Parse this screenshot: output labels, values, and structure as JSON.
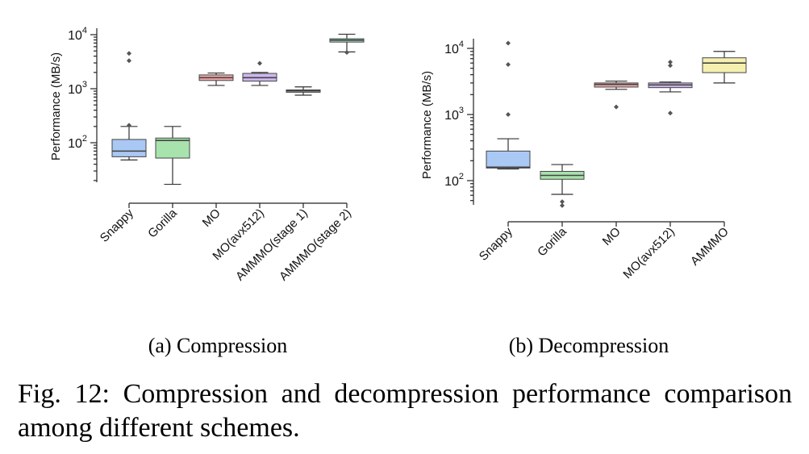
{
  "chart_data": [
    {
      "type": "box",
      "subcaption": "(a) Compression",
      "ylabel": "Performance (MB/s)",
      "yscale": "log",
      "ylim": [
        20,
        12000
      ],
      "yticks": [
        {
          "value": 100,
          "base": "10",
          "exp": "2"
        },
        {
          "value": 1000,
          "base": "10",
          "exp": "3"
        },
        {
          "value": 10000,
          "base": "10",
          "exp": "4"
        }
      ],
      "categories": [
        "Snappy",
        "Gorilla",
        "MO",
        "MO(avx512)",
        "AMMMO(stage 1)",
        "AMMMO(stage 2)"
      ],
      "colors": [
        "#a9c8f3",
        "#a8e3ad",
        "#f2a8a8",
        "#cdb8ef",
        "#cfcfcf",
        "#a6dfc4"
      ],
      "boxes": [
        {
          "name": "Snappy",
          "whislo": 48,
          "q1": 55,
          "med": 70,
          "q3": 115,
          "whishi": 200,
          "fliers": [
            3300,
            4500,
            210
          ]
        },
        {
          "name": "Gorilla",
          "whislo": 17,
          "q1": 52,
          "med": 110,
          "q3": 122,
          "whishi": 200,
          "fliers": []
        },
        {
          "name": "MO",
          "whislo": 1150,
          "q1": 1420,
          "med": 1600,
          "q3": 1800,
          "whishi": 1950,
          "fliers": []
        },
        {
          "name": "MO(avx512)",
          "whislo": 1150,
          "q1": 1380,
          "med": 1600,
          "q3": 1920,
          "whishi": 2000,
          "fliers": [
            2950
          ]
        },
        {
          "name": "AMMMO(stage 1)",
          "whislo": 760,
          "q1": 860,
          "med": 910,
          "q3": 950,
          "whishi": 1080,
          "fliers": []
        },
        {
          "name": "AMMMO(stage 2)",
          "whislo": 4800,
          "q1": 7300,
          "med": 7900,
          "q3": 8400,
          "whishi": 10200,
          "fliers": [
            4700
          ]
        }
      ]
    },
    {
      "type": "box",
      "subcaption": "(b) Decompression",
      "ylabel": "Performance (MB/s)",
      "yscale": "log",
      "ylim": [
        35,
        14000
      ],
      "yticks": [
        {
          "value": 100,
          "base": "10",
          "exp": "2"
        },
        {
          "value": 1000,
          "base": "10",
          "exp": "3"
        },
        {
          "value": 10000,
          "base": "10",
          "exp": "4"
        }
      ],
      "categories": [
        "Snappy",
        "Gorilla",
        "MO",
        "MO(avx512)",
        "AMMMO"
      ],
      "colors": [
        "#a9c8f3",
        "#a8e3ad",
        "#f2a8a8",
        "#cdb8ef",
        "#f5f0b0"
      ],
      "boxes": [
        {
          "name": "Snappy",
          "whislo": 150,
          "q1": 155,
          "med": 160,
          "q3": 280,
          "whishi": 430,
          "fliers": [
            12000,
            5700,
            1000
          ]
        },
        {
          "name": "Gorilla",
          "whislo": 62,
          "q1": 105,
          "med": 120,
          "q3": 138,
          "whishi": 175,
          "fliers": [
            48,
            42
          ]
        },
        {
          "name": "MO",
          "whislo": 2400,
          "q1": 2600,
          "med": 2850,
          "q3": 3000,
          "whishi": 3200,
          "fliers": [
            1300
          ]
        },
        {
          "name": "MO(avx512)",
          "whislo": 2200,
          "q1": 2550,
          "med": 2800,
          "q3": 3000,
          "whishi": 3100,
          "fliers": [
            5500,
            6200,
            1050
          ]
        },
        {
          "name": "AMMMO",
          "whislo": 3000,
          "q1": 4300,
          "med": 6000,
          "q3": 7200,
          "whishi": 9000,
          "fliers": []
        }
      ]
    }
  ],
  "figure_caption": "Fig. 12: Compression and decompression performance comparison among different schemes."
}
